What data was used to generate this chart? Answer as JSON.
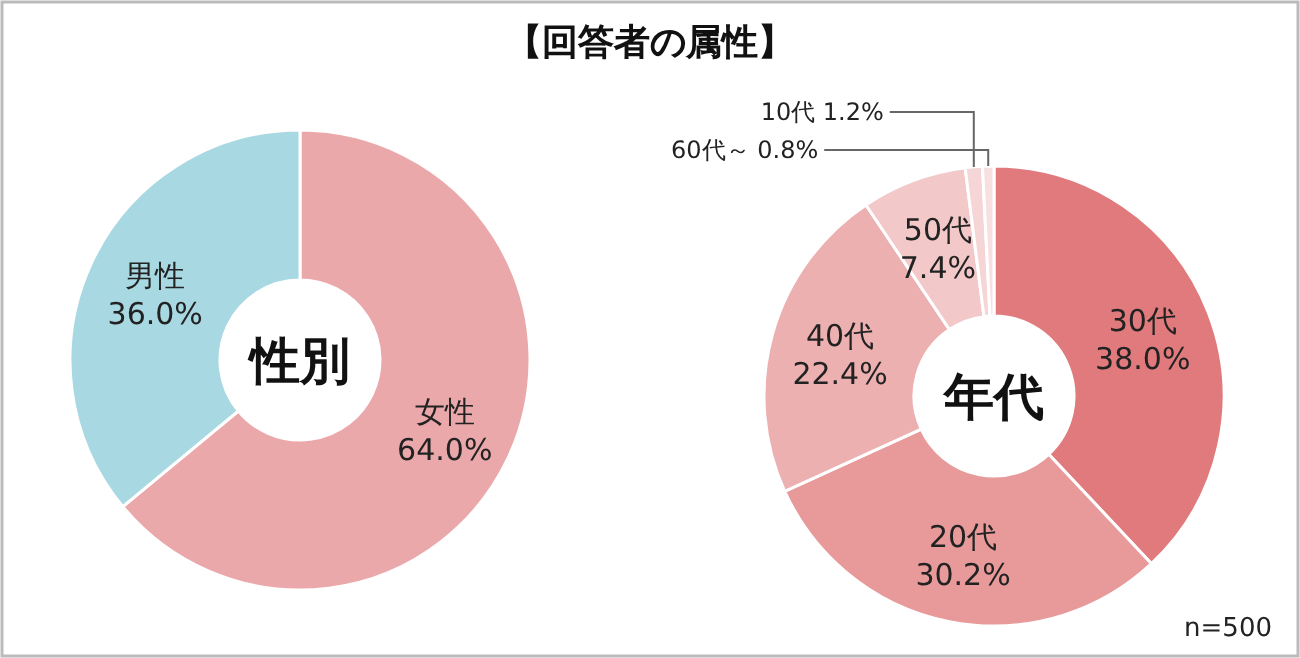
{
  "chart_data": [
    {
      "type": "donut",
      "title": "性別",
      "annotations": [
        "【回答者の属性】"
      ],
      "categories": [
        "女性",
        "男性"
      ],
      "values": [
        64.0,
        36.0
      ],
      "value_labels": [
        "64.0%",
        "36.0%"
      ],
      "colors": [
        "#eba8aa",
        "#a8d8e2"
      ]
    },
    {
      "type": "donut",
      "title": "年代",
      "annotations": [
        "n=500"
      ],
      "categories": [
        "30代",
        "20代",
        "40代",
        "50代",
        "10代",
        "60代～"
      ],
      "values": [
        38.0,
        30.2,
        22.4,
        7.4,
        1.2,
        0.8
      ],
      "value_labels": [
        "38.0%",
        "30.2%",
        "22.4%",
        "7.4%",
        "1.2%",
        "0.8%"
      ],
      "colors": [
        "#e07a7c",
        "#e89a9b",
        "#edb0b1",
        "#f2c8c9",
        "#f5d5d6",
        "#f8e0e0"
      ]
    }
  ]
}
